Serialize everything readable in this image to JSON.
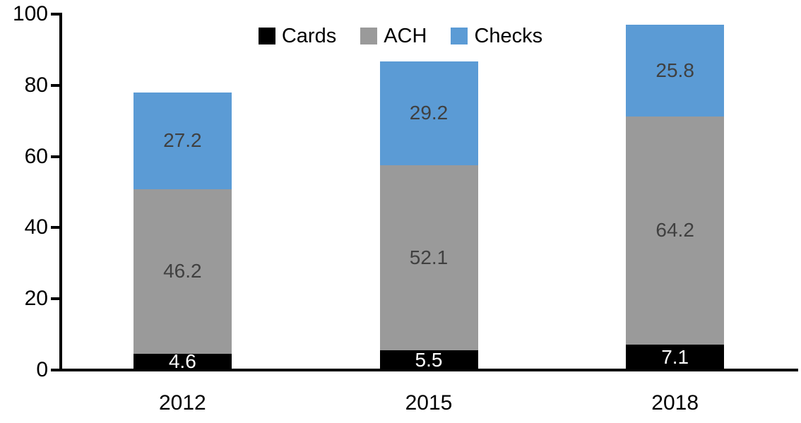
{
  "chart_data": {
    "type": "bar",
    "stacked": true,
    "categories": [
      "2012",
      "2015",
      "2018"
    ],
    "series": [
      {
        "name": "Cards",
        "values": [
          4.6,
          5.5,
          7.1
        ],
        "color": "#000000",
        "label_color": "#FFFFFF"
      },
      {
        "name": "ACH",
        "values": [
          46.2,
          52.1,
          64.2
        ],
        "color": "#9A9A9A",
        "label_color": "#404040"
      },
      {
        "name": "Checks",
        "values": [
          27.2,
          29.2,
          25.8
        ],
        "color": "#5B9BD5",
        "label_color": "#404040"
      }
    ],
    "title": "",
    "xlabel": "",
    "ylabel": "",
    "ylim": [
      0,
      100
    ],
    "yticks": [
      0,
      20,
      40,
      60,
      80,
      100
    ],
    "legend_position": "top-center",
    "grid": false,
    "axis_color": "#000000",
    "background": "#FFFFFF"
  }
}
